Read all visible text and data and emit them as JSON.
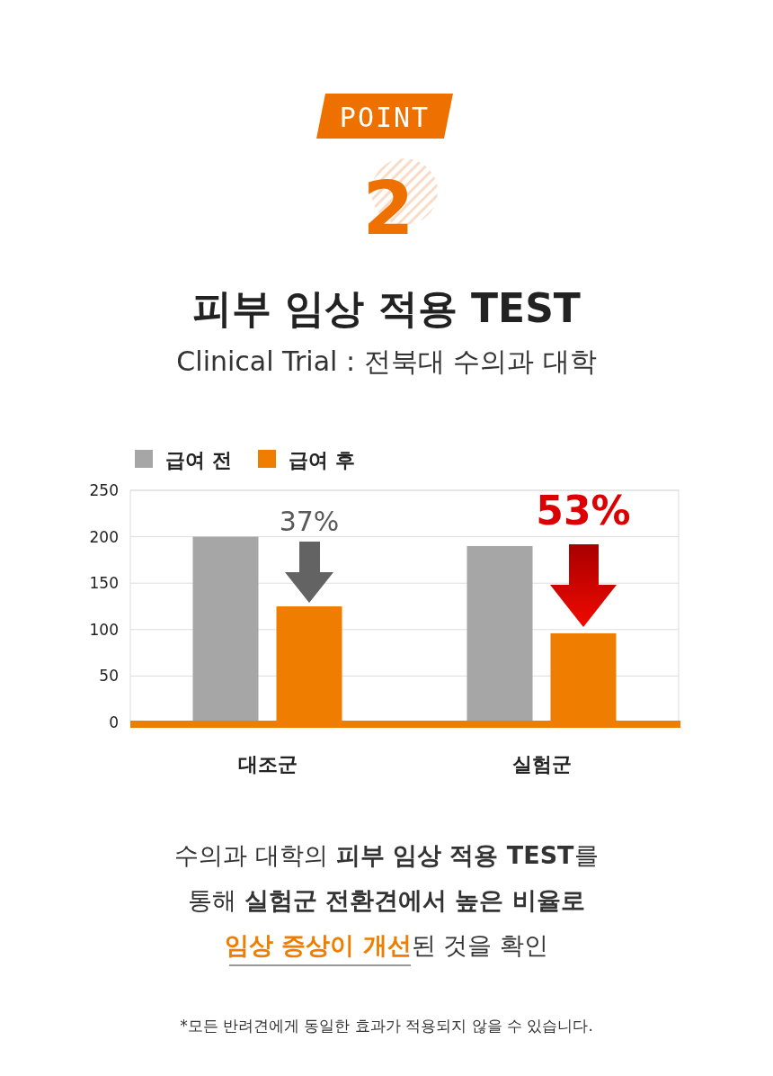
{
  "chart_data": {
    "type": "bar",
    "title": "피부 임상 적용 TEST",
    "subtitle": "Clinical Trial : 전북대 수의과 대학",
    "categories": [
      "대조군",
      "실험군"
    ],
    "series": [
      {
        "name": "급여 전",
        "color": "#a6a6a6",
        "values": [
          200,
          190
        ]
      },
      {
        "name": "급여 후",
        "color": "#ee7d00",
        "values": [
          125,
          96
        ]
      }
    ],
    "ylim": [
      0,
      250
    ],
    "yticks": [
      0,
      50,
      100,
      150,
      200,
      250
    ],
    "grid": "y",
    "legend": "top left",
    "annotations": [
      "POINT",
      "2",
      {
        "text": "37%",
        "y": 125
      },
      "53%",
      "수의과 대학의 ",
      "피부 임상 적용 TEST",
      "를",
      "통해 ",
      "실험군 전환견에서 높은 비율로",
      "임상 증상이 개선",
      "된 것을 확인",
      "*모든 반려견에게 동일한 효과가 적용되지 않을 수 있습니다."
    ]
  }
}
